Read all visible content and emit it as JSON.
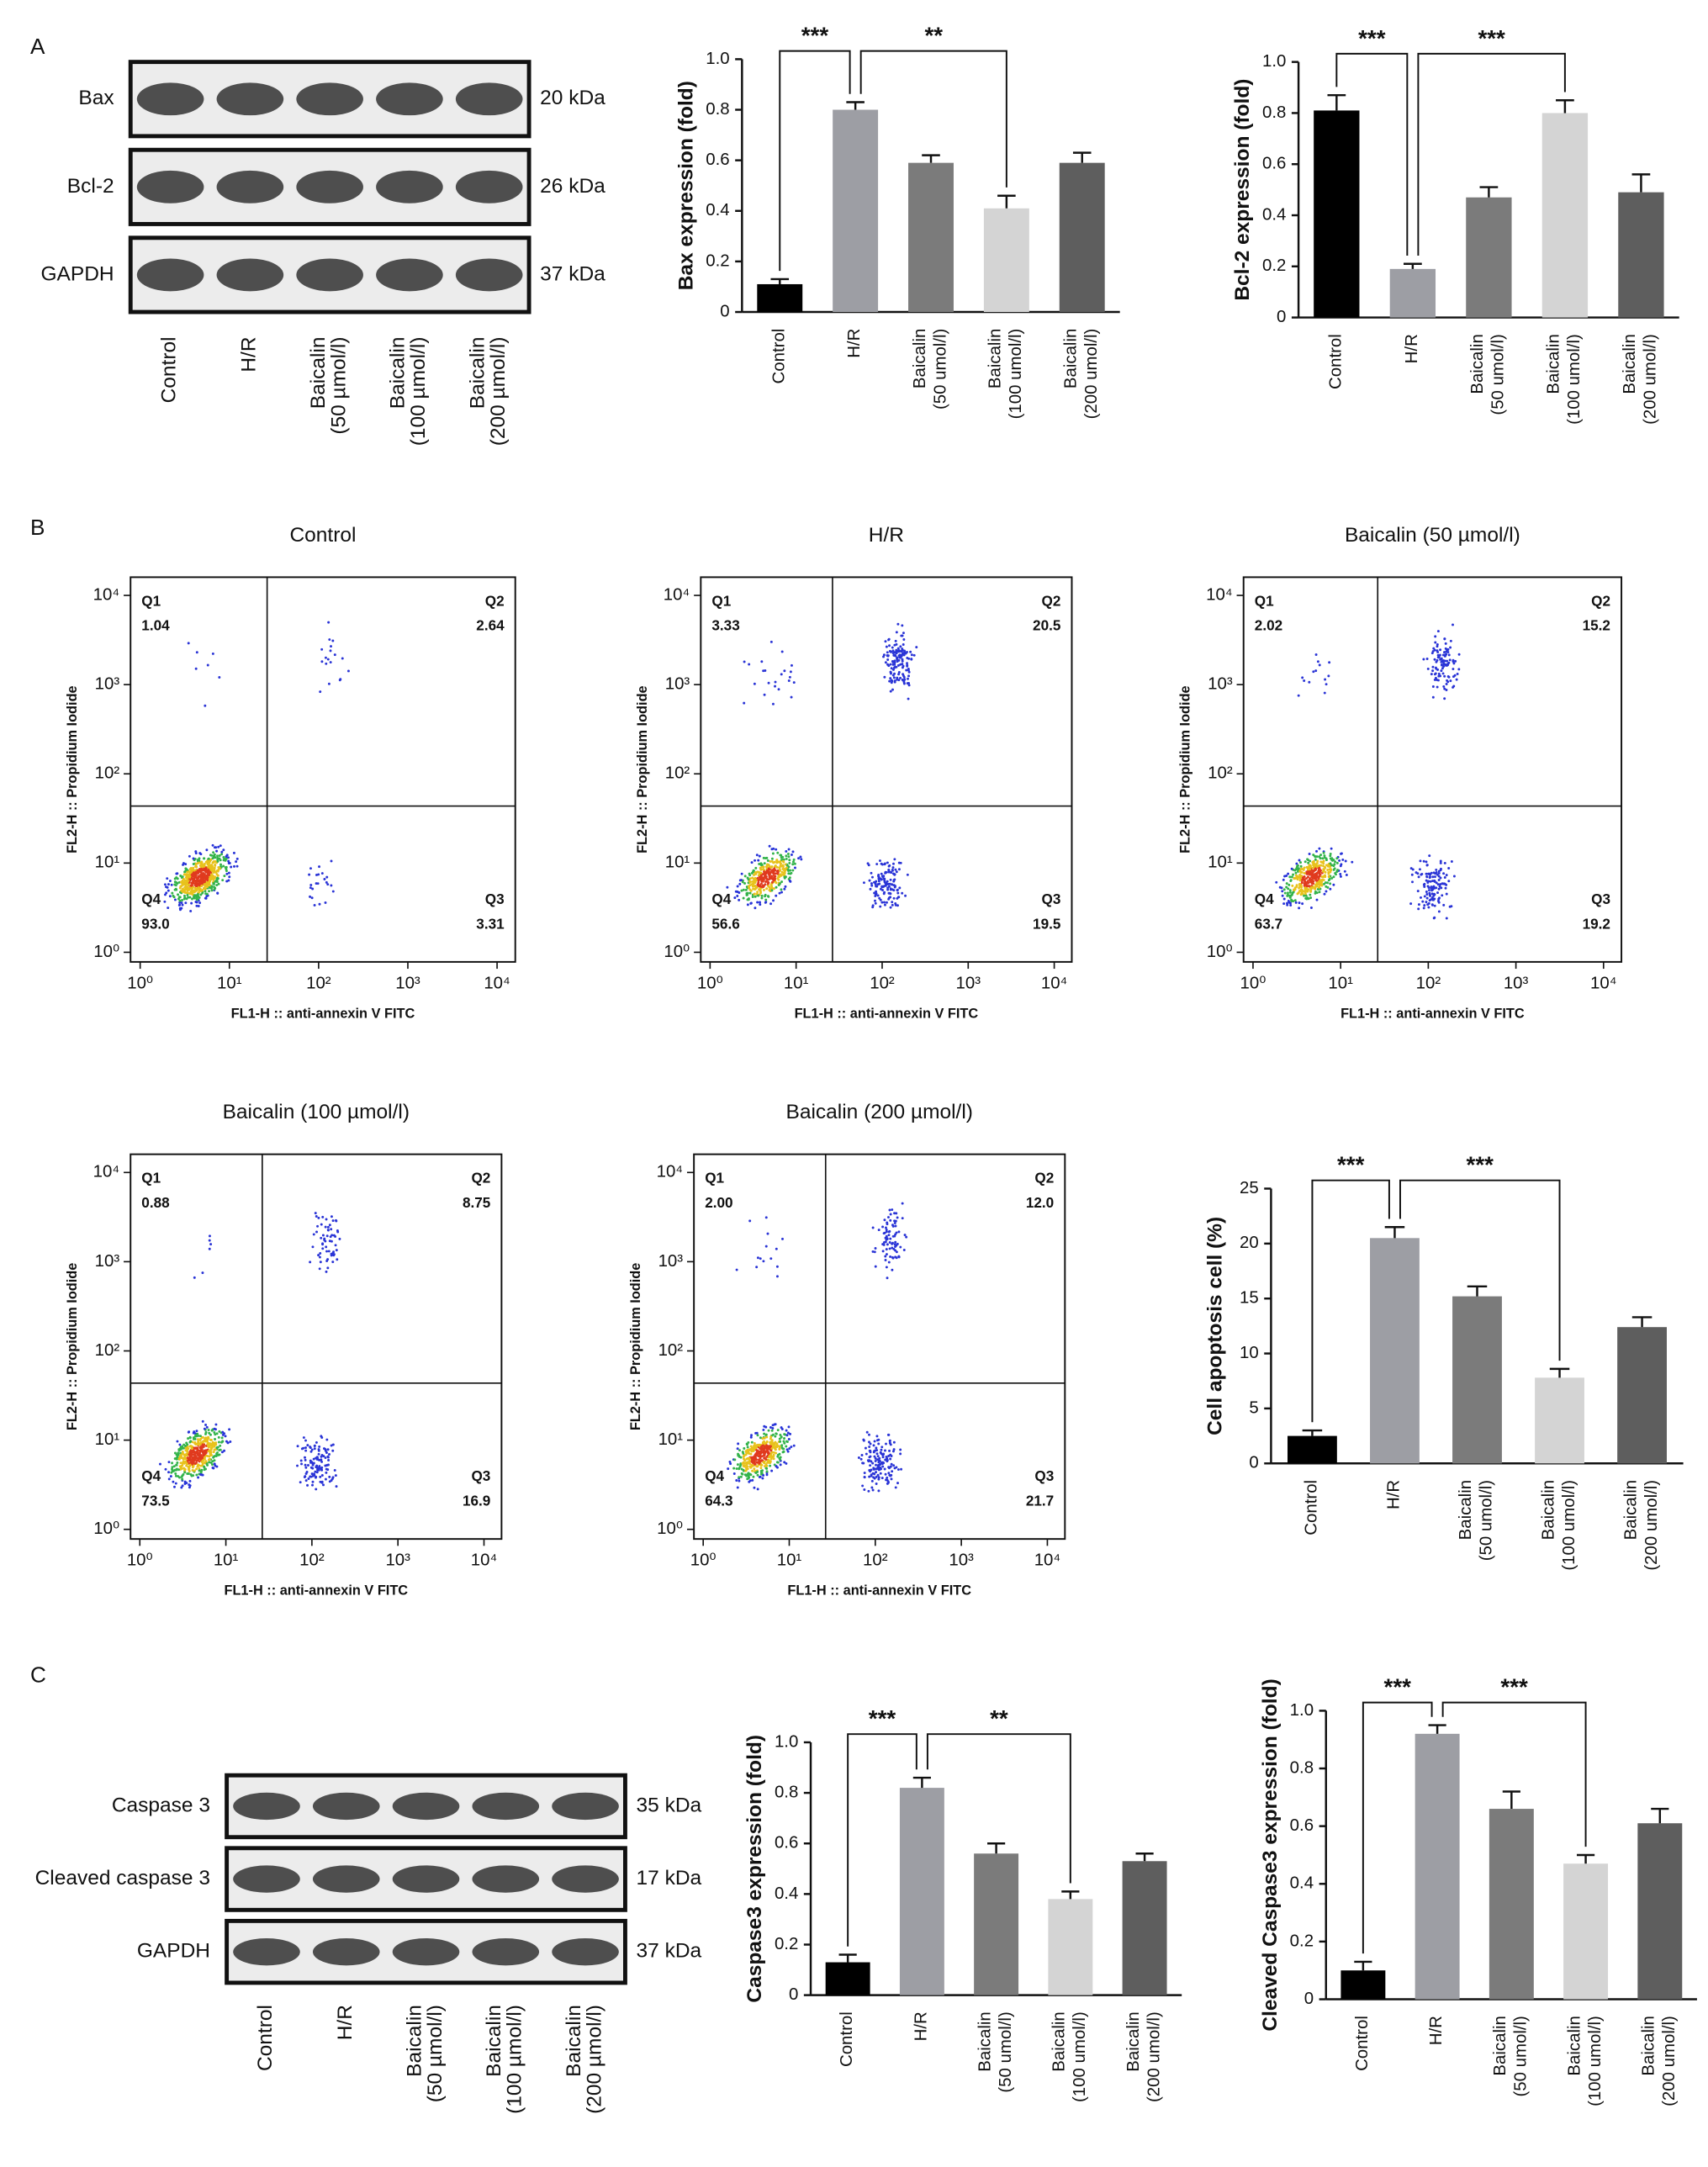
{
  "panel_labels": [
    "A",
    "B",
    "C"
  ],
  "chart_data": [
    {
      "type": "blot",
      "rows": [
        {
          "name": "Bax",
          "size": "20 kDa"
        },
        {
          "name": "Bcl-2",
          "size": "26 kDa"
        },
        {
          "name": "GAPDH",
          "size": "37 kDa"
        }
      ],
      "lanes": [
        "Control",
        "H/R",
        "Baicalin (50 µmol/l)",
        "Baicalin (100 µmol/l)",
        "Baicalin (200 µmol/l)"
      ]
    },
    {
      "type": "bar",
      "ylabel": "Bax expression (fold)",
      "categories": [
        "Control",
        "H/R",
        "Baicalin (50 umol/l)",
        "Baicalin (100 umol/l)",
        "Baicalin (200 umol/l)"
      ],
      "values": [
        0.11,
        0.8,
        0.59,
        0.41,
        0.59
      ],
      "errors": [
        0.02,
        0.03,
        0.03,
        0.05,
        0.04
      ],
      "colors": [
        "#000000",
        "#9d9ea4",
        "#7b7b7b",
        "#d4d4d4",
        "#5e5e5e"
      ],
      "ylim": [
        0,
        1
      ],
      "yticks": [
        0,
        0.2,
        0.4,
        0.6,
        0.8,
        {
          "value": 1,
          "label": "1.0"
        }
      ],
      "significance": [
        {
          "pair": [
            "Control",
            "H/R"
          ],
          "label": "***"
        },
        {
          "pair": [
            "H/R",
            "Baicalin (100 umol/l)"
          ],
          "label": "**"
        }
      ]
    },
    {
      "type": "bar",
      "ylabel": "Bcl-2 expression (fold)",
      "categories": [
        "Control",
        "H/R",
        "Baicalin (50 umol/l)",
        "Baicalin (100 umol/l)",
        "Baicalin (200 umol/l)"
      ],
      "values": [
        0.81,
        0.19,
        0.47,
        0.8,
        0.49
      ],
      "errors": [
        0.06,
        0.02,
        0.04,
        0.05,
        0.07
      ],
      "colors": [
        "#000000",
        "#9d9ea4",
        "#7b7b7b",
        "#d4d4d4",
        "#5e5e5e"
      ],
      "ylim": [
        0,
        1
      ],
      "yticks": [
        0,
        0.2,
        0.4,
        0.6,
        0.8,
        {
          "value": 1,
          "label": "1.0"
        }
      ],
      "significance": [
        {
          "pair": [
            "Control",
            "H/R"
          ],
          "label": "***"
        },
        {
          "pair": [
            "H/R",
            "Baicalin (100 umol/l)"
          ],
          "label": "***"
        }
      ]
    },
    {
      "type": "flow",
      "title": "Control",
      "xlabel": "FL1-H :: anti-annexin V FITC",
      "ylabel": "FL2-H :: Propidium Iodide",
      "log": true,
      "xlim": [
        0.78,
        16000
      ],
      "ylim": [
        0.78,
        16000
      ],
      "xticks": [
        {
          "value": 1,
          "label": "10⁰"
        },
        {
          "value": 10,
          "label": "10¹"
        },
        {
          "value": 100,
          "label": "10²"
        },
        {
          "value": 1000,
          "label": "10³"
        },
        {
          "value": 10000,
          "label": "10⁴"
        }
      ],
      "yticks": [
        {
          "value": 1,
          "label": "10⁰"
        },
        {
          "value": 10,
          "label": "10¹"
        },
        {
          "value": 100,
          "label": "10²"
        },
        {
          "value": 1000,
          "label": "10³"
        },
        {
          "value": 10000,
          "label": "10⁴"
        }
      ],
      "quadrants": [
        "Q1",
        "Q2",
        "Q3",
        "Q4"
      ],
      "values": [
        1.04,
        2.64,
        3.31,
        93
      ],
      "value_labels": [
        "1.04",
        "2.64",
        "3.31",
        "93.0"
      ]
    },
    {
      "type": "flow",
      "title": "H/R",
      "xlabel": "FL1-H :: anti-annexin V FITC",
      "ylabel": "FL2-H :: Propidium Iodide",
      "log": true,
      "xlim": [
        0.78,
        16000
      ],
      "ylim": [
        0.78,
        16000
      ],
      "xticks": [
        {
          "value": 1,
          "label": "10⁰"
        },
        {
          "value": 10,
          "label": "10¹"
        },
        {
          "value": 100,
          "label": "10²"
        },
        {
          "value": 1000,
          "label": "10³"
        },
        {
          "value": 10000,
          "label": "10⁴"
        }
      ],
      "yticks": [
        {
          "value": 1,
          "label": "10⁰"
        },
        {
          "value": 10,
          "label": "10¹"
        },
        {
          "value": 100,
          "label": "10²"
        },
        {
          "value": 1000,
          "label": "10³"
        },
        {
          "value": 10000,
          "label": "10⁴"
        }
      ],
      "quadrants": [
        "Q1",
        "Q2",
        "Q3",
        "Q4"
      ],
      "values": [
        3.33,
        20.5,
        19.5,
        56.6
      ],
      "value_labels": [
        "3.33",
        "20.5",
        "19.5",
        "56.6"
      ]
    },
    {
      "type": "flow",
      "title": "Baicalin (50 µmol/l)",
      "xlabel": "FL1-H :: anti-annexin V FITC",
      "ylabel": "FL2-H :: Propidium Iodide",
      "log": true,
      "xlim": [
        0.78,
        16000
      ],
      "ylim": [
        0.78,
        16000
      ],
      "xticks": [
        {
          "value": 1,
          "label": "10⁰"
        },
        {
          "value": 10,
          "label": "10¹"
        },
        {
          "value": 100,
          "label": "10²"
        },
        {
          "value": 1000,
          "label": "10³"
        },
        {
          "value": 10000,
          "label": "10⁴"
        }
      ],
      "yticks": [
        {
          "value": 1,
          "label": "10⁰"
        },
        {
          "value": 10,
          "label": "10¹"
        },
        {
          "value": 100,
          "label": "10²"
        },
        {
          "value": 1000,
          "label": "10³"
        },
        {
          "value": 10000,
          "label": "10⁴"
        }
      ],
      "quadrants": [
        "Q1",
        "Q2",
        "Q3",
        "Q4"
      ],
      "values": [
        2.02,
        15.2,
        19.2,
        63.7
      ],
      "value_labels": [
        "2.02",
        "15.2",
        "19.2",
        "63.7"
      ]
    },
    {
      "type": "flow",
      "title": "Baicalin (100  µmol/l)",
      "xlabel": "FL1-H :: anti-annexin V FITC",
      "ylabel": "FL2-H :: Propidium Iodide",
      "log": true,
      "xlim": [
        0.78,
        16000
      ],
      "ylim": [
        0.78,
        16000
      ],
      "xticks": [
        {
          "value": 1,
          "label": "10⁰"
        },
        {
          "value": 10,
          "label": "10¹"
        },
        {
          "value": 100,
          "label": "10²"
        },
        {
          "value": 1000,
          "label": "10³"
        },
        {
          "value": 10000,
          "label": "10⁴"
        }
      ],
      "yticks": [
        {
          "value": 1,
          "label": "10⁰"
        },
        {
          "value": 10,
          "label": "10¹"
        },
        {
          "value": 100,
          "label": "10²"
        },
        {
          "value": 1000,
          "label": "10³"
        },
        {
          "value": 10000,
          "label": "10⁴"
        }
      ],
      "quadrants": [
        "Q1",
        "Q2",
        "Q3",
        "Q4"
      ],
      "values": [
        0.88,
        8.75,
        16.9,
        73.5
      ],
      "value_labels": [
        "0.88",
        "8.75",
        "16.9",
        "73.5"
      ]
    },
    {
      "type": "flow",
      "title": "Baicalin (200 µmol/l)",
      "xlabel": "FL1-H :: anti-annexin V FITC",
      "ylabel": "FL2-H :: Propidium Iodide",
      "log": true,
      "xlim": [
        0.78,
        16000
      ],
      "ylim": [
        0.78,
        16000
      ],
      "xticks": [
        {
          "value": 1,
          "label": "10⁰"
        },
        {
          "value": 10,
          "label": "10¹"
        },
        {
          "value": 100,
          "label": "10²"
        },
        {
          "value": 1000,
          "label": "10³"
        },
        {
          "value": 10000,
          "label": "10⁴"
        }
      ],
      "yticks": [
        {
          "value": 1,
          "label": "10⁰"
        },
        {
          "value": 10,
          "label": "10¹"
        },
        {
          "value": 100,
          "label": "10²"
        },
        {
          "value": 1000,
          "label": "10³"
        },
        {
          "value": 10000,
          "label": "10⁴"
        }
      ],
      "quadrants": [
        "Q1",
        "Q2",
        "Q3",
        "Q4"
      ],
      "values": [
        2,
        12,
        21.7,
        64.3
      ],
      "value_labels": [
        "2.00",
        "12.0",
        "21.7",
        "64.3"
      ]
    },
    {
      "type": "bar",
      "ylabel": "Cell apoptosis cell (%)",
      "categories": [
        "Control",
        "H/R",
        "Baicalin (50 umol/l)",
        "Baicalin (100 umol/l)",
        "Baicalin (200 umol/l)"
      ],
      "values": [
        2.5,
        20.5,
        15.2,
        7.8,
        12.4
      ],
      "errors": [
        0.5,
        1.0,
        0.9,
        0.8,
        0.9
      ],
      "colors": [
        "#000000",
        "#9d9ea4",
        "#7b7b7b",
        "#d4d4d4",
        "#5e5e5e"
      ],
      "ylim": [
        0,
        25
      ],
      "yticks": [
        0,
        5,
        10,
        15,
        20,
        25
      ],
      "significance": [
        {
          "pair": [
            "Control",
            "H/R"
          ],
          "label": "***"
        },
        {
          "pair": [
            "H/R",
            "Baicalin (100 umol/l)"
          ],
          "label": "***"
        }
      ]
    },
    {
      "type": "blot",
      "rows": [
        {
          "name": "Caspase 3",
          "size": "35 kDa"
        },
        {
          "name": "Cleaved  caspase 3",
          "size": "17 kDa"
        },
        {
          "name": "GAPDH",
          "size": "37 kDa"
        }
      ],
      "lanes": [
        "Control",
        "H/R",
        "Baicalin (50 µmol/l)",
        "Baicalin (100 µmol/l)",
        "Baicalin (200 µmol/l)"
      ]
    },
    {
      "type": "bar",
      "ylabel": "Caspase3 expression (fold)",
      "categories": [
        "Control",
        "H/R",
        "Baicalin (50 umol/l)",
        "Baicalin (100 umol/l)",
        "Baicalin (200 umol/l)"
      ],
      "values": [
        0.13,
        0.82,
        0.56,
        0.38,
        0.53
      ],
      "errors": [
        0.03,
        0.04,
        0.04,
        0.03,
        0.03
      ],
      "colors": [
        "#000000",
        "#9d9ea4",
        "#7b7b7b",
        "#d4d4d4",
        "#5e5e5e"
      ],
      "ylim": [
        0,
        1
      ],
      "yticks": [
        0,
        0.2,
        0.4,
        0.6,
        0.8,
        {
          "value": 1,
          "label": "1.0"
        }
      ],
      "significance": [
        {
          "pair": [
            "Control",
            "H/R"
          ],
          "label": "***"
        },
        {
          "pair": [
            "H/R",
            "Baicalin (100 umol/l)"
          ],
          "label": "**"
        }
      ]
    },
    {
      "type": "bar",
      "ylabel": "Cleaved Caspase3 expression (fold)",
      "categories": [
        "Control",
        "H/R",
        "Baicalin (50 umol/l)",
        "Baicalin (100 umol/l)",
        "Baicalin (200 umol/l)"
      ],
      "values": [
        0.1,
        0.92,
        0.66,
        0.47,
        0.61
      ],
      "errors": [
        0.03,
        0.03,
        0.06,
        0.03,
        0.05
      ],
      "colors": [
        "#000000",
        "#9d9ea4",
        "#7b7b7b",
        "#d4d4d4",
        "#5e5e5e"
      ],
      "ylim": [
        0,
        1
      ],
      "yticks": [
        0,
        0.2,
        0.4,
        0.6,
        0.8,
        {
          "value": 1,
          "label": "1.0"
        }
      ],
      "significance": [
        {
          "pair": [
            "Control",
            "H/R"
          ],
          "label": "***"
        },
        {
          "pair": [
            "H/R",
            "Baicalin (100 umol/l)"
          ],
          "label": "***"
        }
      ]
    }
  ]
}
